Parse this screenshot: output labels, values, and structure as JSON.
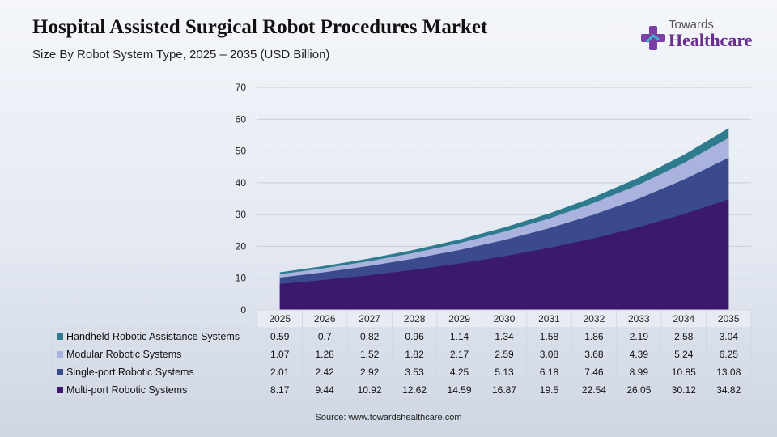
{
  "header": {
    "title": "Hospital Assisted Surgical Robot Procedures Market",
    "subtitle": "Size By Robot System Type, 2025 – 2035 (USD Billion)"
  },
  "logo": {
    "small_text": "Towards",
    "big_text": "Healthcare",
    "icon": "cross-icon",
    "colors": {
      "cross": "#7b3fa6",
      "accent": "#3bb5c9"
    }
  },
  "footer": {
    "source": "Source: www.towardshealthcare.com"
  },
  "chart_data": {
    "type": "area",
    "stacked": true,
    "categories": [
      "2025",
      "2026",
      "2027",
      "2028",
      "2029",
      "2030",
      "2031",
      "2032",
      "2033",
      "2034",
      "2035"
    ],
    "series": [
      {
        "name": "Handheld Robotic Assistance Systems",
        "color": "#2f7b8e",
        "values": [
          0.59,
          0.7,
          0.82,
          0.96,
          1.14,
          1.34,
          1.58,
          1.86,
          2.19,
          2.58,
          3.04
        ]
      },
      {
        "name": "Modular Robotic Systems",
        "color": "#a9b3dd",
        "values": [
          1.07,
          1.28,
          1.52,
          1.82,
          2.17,
          2.59,
          3.08,
          3.68,
          4.39,
          5.24,
          6.25
        ]
      },
      {
        "name": "Single-port Robotic Systems",
        "color": "#3a4a8c",
        "values": [
          2.01,
          2.42,
          2.92,
          3.53,
          4.25,
          5.13,
          6.18,
          7.46,
          8.99,
          10.85,
          13.08
        ]
      },
      {
        "name": "Multi-port Robotic Systems",
        "color": "#3b1a6b",
        "values": [
          8.17,
          9.44,
          10.92,
          12.62,
          14.59,
          16.87,
          19.5,
          22.54,
          26.05,
          30.12,
          34.82
        ]
      }
    ],
    "ylim": [
      0,
      70
    ],
    "yticks": [
      0,
      10,
      20,
      30,
      40,
      50,
      60,
      70
    ],
    "grid": true,
    "legend": "data-table"
  }
}
